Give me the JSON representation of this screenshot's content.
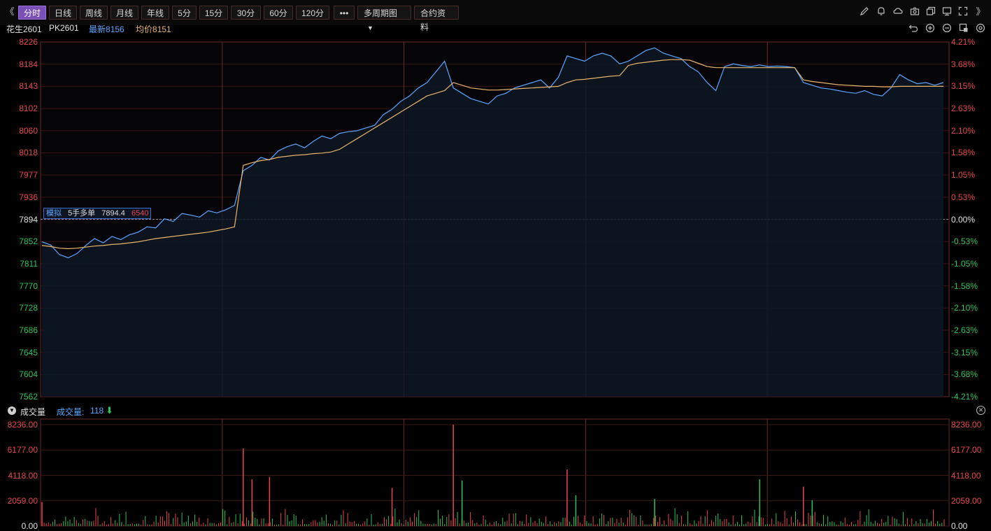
{
  "toolbar": {
    "collapse_left": "《",
    "collapse_right": "》",
    "buttons": [
      "分时",
      "日线",
      "周线",
      "月线",
      "年线",
      "5分",
      "15分",
      "30分",
      "60分",
      "120分"
    ],
    "more": "•••",
    "multi_period": "多周期图",
    "contract_info": "合约资料",
    "active_index": 0,
    "icons": [
      "pencil-icon",
      "bell-icon",
      "cloud-icon",
      "camera-icon",
      "copy-icon",
      "monitor-icon",
      "expand-icon"
    ]
  },
  "info": {
    "name": "花生2601",
    "code": "PK2601",
    "latest_label": "最新",
    "latest_value": "8156",
    "avg_label": "均价",
    "avg_value": "8151"
  },
  "chart_icons": [
    "undo-icon",
    "zoom-in-icon",
    "zoom-out-icon",
    "layout-icon",
    "settings-icon"
  ],
  "price_tag": {
    "mode": "模拟",
    "text": "5手多单",
    "price": "7894.4",
    "pnl": "6540"
  },
  "volume_header": {
    "title": "成交量",
    "label": "成交量:",
    "value": "118"
  },
  "colors": {
    "up": "#e8474b",
    "down": "#2ec35a",
    "price_line": "#5aa6ff",
    "avg_line": "#e8b46a",
    "grid": "#3a1414",
    "divider": "#6a2a2a"
  },
  "chart_data": {
    "type": "line",
    "price_axis": {
      "ticks": [
        "8226",
        "8184",
        "8143",
        "8102",
        "8060",
        "8018",
        "7977",
        "7936",
        "7894",
        "7852",
        "7811",
        "7770",
        "7728",
        "7686",
        "7645",
        "7604",
        "7562"
      ],
      "ylim": [
        7562,
        8226
      ],
      "base": 7894
    },
    "pct_axis": {
      "ticks": [
        "4.21%",
        "3.68%",
        "3.15%",
        "2.63%",
        "2.10%",
        "1.58%",
        "1.05%",
        "0.53%",
        "0.00%",
        "-0.53%",
        "-1.05%",
        "-1.58%",
        "-2.10%",
        "-2.63%",
        "-3.15%",
        "-3.68%",
        "-4.21%"
      ]
    },
    "volume_axis": {
      "ticks": [
        "8236.00",
        "6177.00",
        "4118.00",
        "2059.00",
        "0.00"
      ],
      "ylim": [
        0,
        8236
      ]
    },
    "price_series": [
      7852,
      7846,
      7828,
      7822,
      7830,
      7845,
      7858,
      7850,
      7862,
      7856,
      7865,
      7870,
      7880,
      7878,
      7895,
      7890,
      7905,
      7902,
      7898,
      7910,
      7906,
      7912,
      7920,
      7985,
      7995,
      8010,
      8005,
      8022,
      8030,
      8035,
      8028,
      8040,
      8050,
      8045,
      8055,
      8058,
      8060,
      8065,
      8070,
      8090,
      8100,
      8115,
      8125,
      8140,
      8150,
      8170,
      8190,
      8140,
      8130,
      8120,
      8115,
      8110,
      8125,
      8130,
      8140,
      8145,
      8150,
      8155,
      8140,
      8160,
      8200,
      8195,
      8190,
      8200,
      8205,
      8200,
      8185,
      8190,
      8200,
      8210,
      8215,
      8205,
      8200,
      8195,
      8180,
      8170,
      8150,
      8135,
      8180,
      8185,
      8182,
      8180,
      8183,
      8180,
      8181,
      8180,
      8178,
      8150,
      8145,
      8140,
      8138,
      8135,
      8132,
      8130,
      8135,
      8128,
      8125,
      8140,
      8165,
      8155,
      8148,
      8150,
      8145,
      8150
    ],
    "avg_series": [
      7845,
      7843,
      7840,
      7839,
      7840,
      7842,
      7844,
      7845,
      7847,
      7848,
      7850,
      7852,
      7855,
      7858,
      7860,
      7862,
      7864,
      7866,
      7868,
      7870,
      7873,
      7876,
      7880,
      7995,
      8000,
      8004,
      8006,
      8010,
      8012,
      8014,
      8015,
      8017,
      8018,
      8020,
      8025,
      8035,
      8045,
      8055,
      8065,
      8075,
      8085,
      8095,
      8105,
      8115,
      8125,
      8130,
      8135,
      8150,
      8145,
      8140,
      8138,
      8136,
      8136,
      8137,
      8138,
      8139,
      8140,
      8141,
      8142,
      8143,
      8150,
      8155,
      8156,
      8158,
      8160,
      8162,
      8163,
      8182,
      8186,
      8188,
      8190,
      8192,
      8193,
      8193,
      8192,
      8186,
      8180,
      8178,
      8178,
      8178,
      8178,
      8178,
      8178,
      8178,
      8178,
      8178,
      8178,
      8155,
      8152,
      8150,
      8148,
      8146,
      8145,
      8144,
      8143,
      8143,
      8142,
      8142,
      8143,
      8143,
      8143,
      8143,
      8143,
      8143
    ],
    "volume_peaks": [
      {
        "slot": 0,
        "value": 1950,
        "dir": "up"
      },
      {
        "slot": 23,
        "value": 6300,
        "dir": "up"
      },
      {
        "slot": 24,
        "value": 3800,
        "dir": "up"
      },
      {
        "slot": 26,
        "value": 4000,
        "dir": "up"
      },
      {
        "slot": 40,
        "value": 3100,
        "dir": "up"
      },
      {
        "slot": 47,
        "value": 8236,
        "dir": "up"
      },
      {
        "slot": 48,
        "value": 3700,
        "dir": "down"
      },
      {
        "slot": 60,
        "value": 4600,
        "dir": "up"
      },
      {
        "slot": 61,
        "value": 2500,
        "dir": "down"
      },
      {
        "slot": 70,
        "value": 2200,
        "dir": "down"
      },
      {
        "slot": 82,
        "value": 3800,
        "dir": "down"
      },
      {
        "slot": 87,
        "value": 3200,
        "dir": "up"
      },
      {
        "slot": 88,
        "value": 2100,
        "dir": "down"
      }
    ],
    "session_dividers": 4
  }
}
